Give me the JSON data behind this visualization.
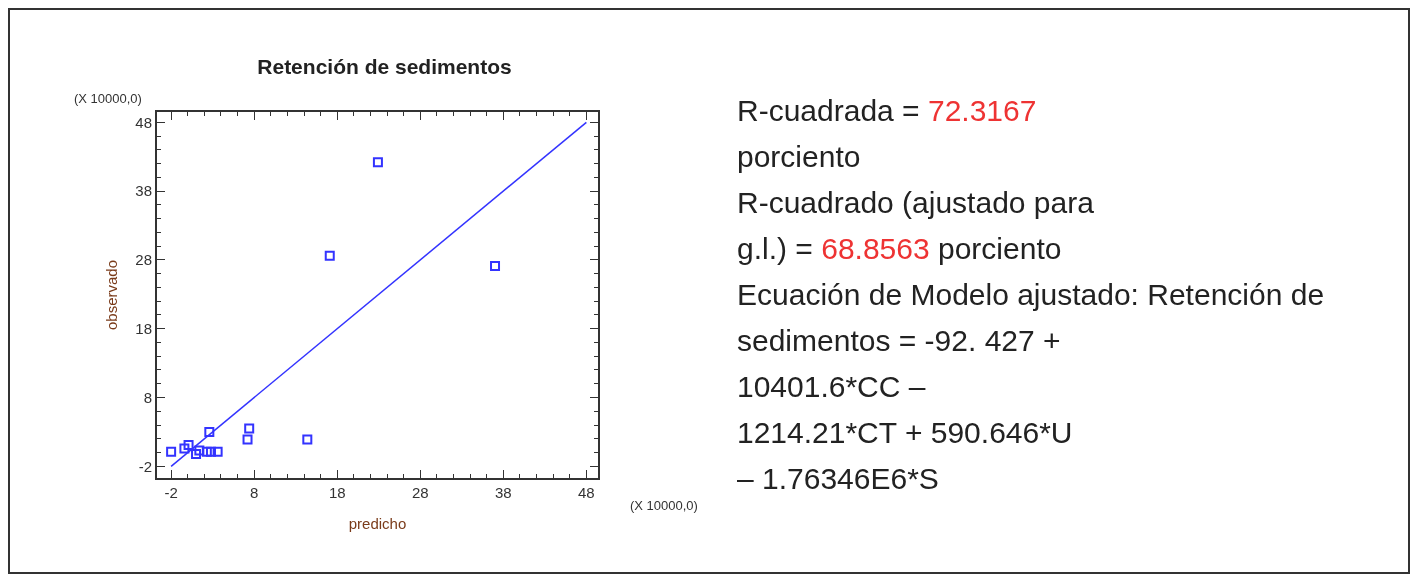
{
  "chart_data": {
    "type": "scatter",
    "title": "Retención de sedimentos",
    "xlabel": "predicho",
    "ylabel": "observado",
    "xlim": [
      -3.7,
      49.4
    ],
    "ylim": [
      -3.7,
      49.5
    ],
    "xticks": [
      -2,
      8,
      18,
      28,
      38,
      48
    ],
    "yticks": [
      -2,
      8,
      18,
      28,
      38,
      48
    ],
    "grid": false,
    "legend": false,
    "marker": "square",
    "series": [
      {
        "color": "#3333ff",
        "x": [
          22.9,
          17.1,
          37.0,
          14.4,
          7.4,
          7.2,
          2.6,
          -2.0,
          1.0,
          2.3,
          2.8,
          3.6,
          0.1,
          -0.4,
          1.4
        ],
        "values": [
          42.2,
          28.6,
          27.1,
          1.9,
          3.5,
          1.9,
          3.0,
          0.1,
          -0.2,
          0.1,
          0.1,
          0.1,
          1.1,
          0.6,
          0.3
        ]
      },
      {
        "type": "line",
        "color": "#3333ff",
        "x": [
          -2,
          48
        ],
        "values": [
          -2,
          48
        ],
        "marker": "none"
      }
    ],
    "annotations": [
      "(X 10000,0)",
      "(X 10000,0)",
      "R-cuadrada = 72.3167",
      "porciento",
      "R-cuadrado (ajustado para",
      "g.l.) = 68.8563 porciento",
      "Ecuación de Modelo ajustado: Retención de",
      "sedimentos = -92. 427 +",
      "10401.6*CC –",
      "1214.21*CT + 590.646*U",
      "– 1.76346E6*S"
    ]
  }
}
